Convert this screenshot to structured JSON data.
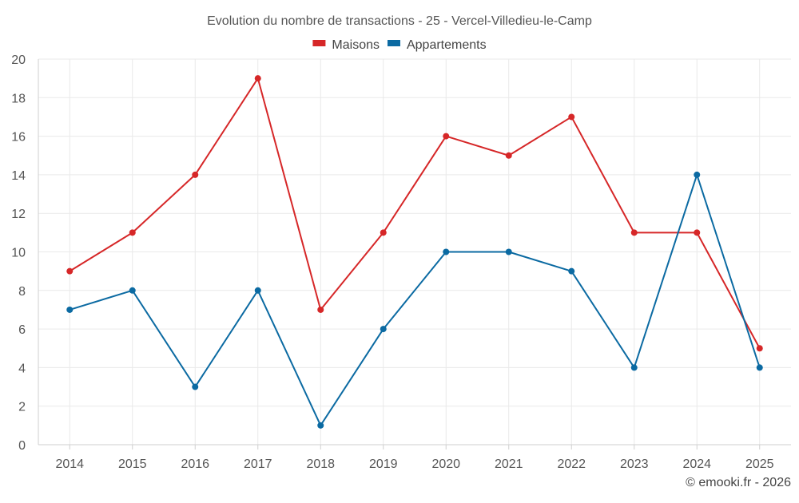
{
  "chart_data": {
    "type": "line",
    "title": "Evolution du nombre de transactions - 25 - Vercel-Villedieu-le-Camp",
    "categories": [
      "2014",
      "2015",
      "2016",
      "2017",
      "2018",
      "2019",
      "2020",
      "2021",
      "2022",
      "2023",
      "2024",
      "2025"
    ],
    "series": [
      {
        "name": "Maisons",
        "color": "#d62728",
        "values": [
          9,
          11,
          14,
          19,
          7,
          11,
          16,
          15,
          17,
          11,
          11,
          5
        ]
      },
      {
        "name": "Appartements",
        "color": "#0b6aa2",
        "values": [
          7,
          8,
          3,
          8,
          1,
          6,
          10,
          10,
          9,
          4,
          14,
          4
        ]
      }
    ],
    "xlabel": "",
    "ylabel": "",
    "ylim": [
      0,
      20
    ],
    "yticks": [
      0,
      2,
      4,
      6,
      8,
      10,
      12,
      14,
      16,
      18,
      20
    ],
    "grid": true,
    "legend_position": "top-center"
  },
  "credit": "© emooki.fr - 2026"
}
